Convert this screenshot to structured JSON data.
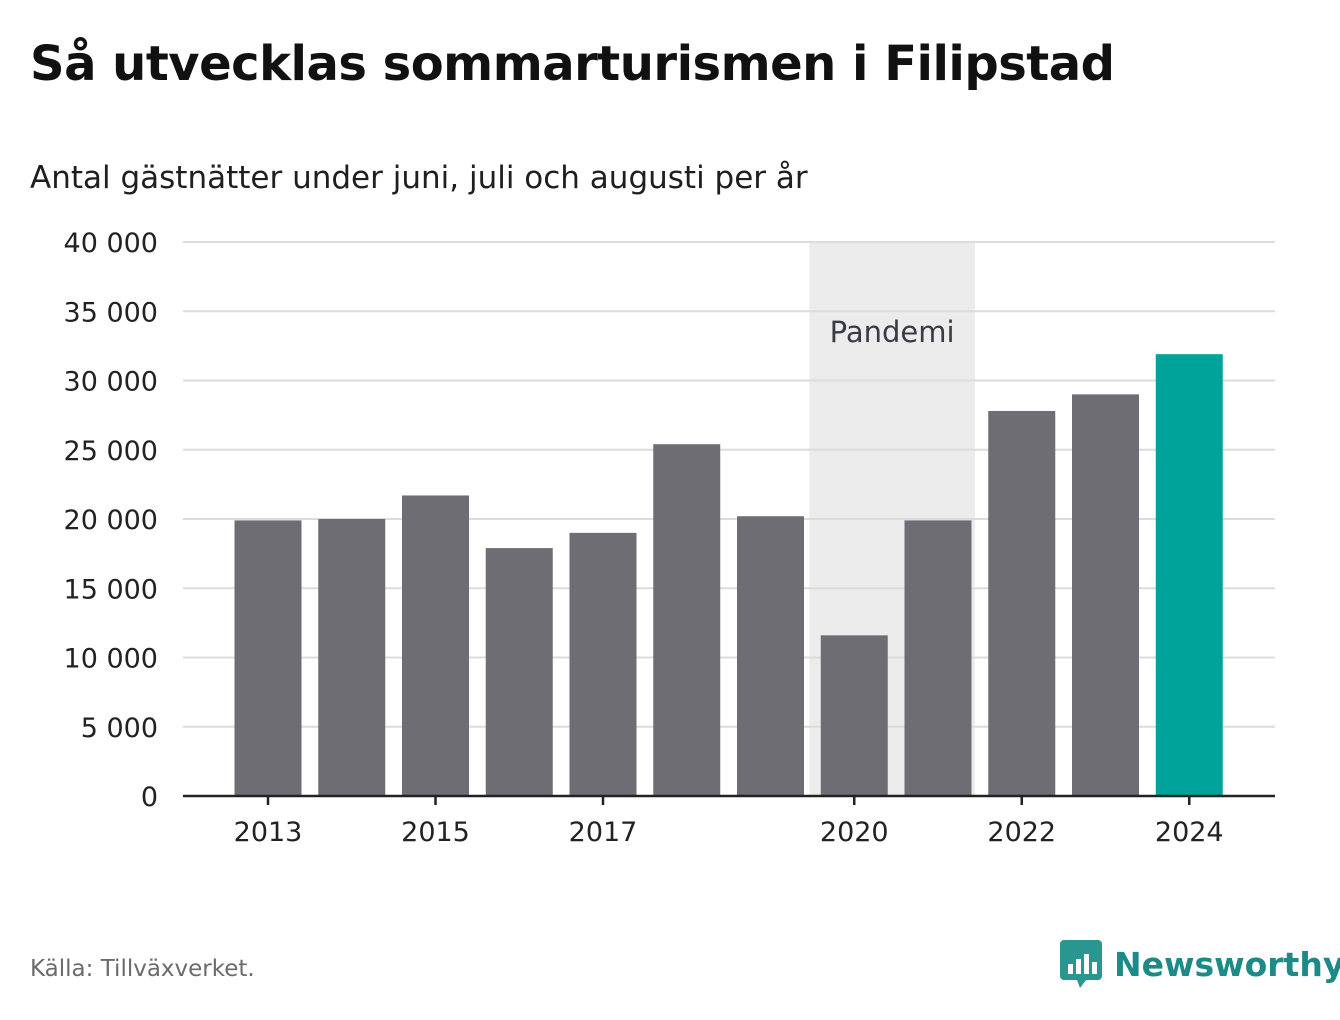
{
  "title": "Så utvecklas sommarturismen i Filipstad",
  "subtitle": "Antal gästnätter under juni, juli och augusti per år",
  "source": "Källa: Tillväxverket.",
  "brand": {
    "name": "Newsworthy",
    "icon": "newsworthy-chat-bar-icon"
  },
  "colors": {
    "bar": "#6e6d73",
    "highlight": "#00a39a",
    "band": "#ececec",
    "grid": "#dcdcdc",
    "axis": "#222222",
    "brand": "#1c8a87"
  },
  "chart_data": {
    "type": "bar",
    "categories": [
      2013,
      2014,
      2015,
      2016,
      2017,
      2018,
      2019,
      2020,
      2021,
      2022,
      2023,
      2024
    ],
    "values": [
      19900,
      20000,
      21700,
      17900,
      19000,
      25400,
      20200,
      11600,
      19900,
      27800,
      29000,
      31900
    ],
    "xtick_labels": [
      "2013",
      "2015",
      "2017",
      "2020",
      "2022",
      "2024"
    ],
    "ylim": [
      0,
      40000
    ],
    "yticks": [
      0,
      5000,
      10000,
      15000,
      20000,
      25000,
      30000,
      35000,
      40000
    ],
    "ytick_labels": [
      "0",
      "5 000",
      "10 000",
      "15 000",
      "20 000",
      "25 000",
      "30 000",
      "35 000",
      "40 000"
    ],
    "highlight_category": 2024,
    "annotation": {
      "label": "Pandemi",
      "from": 2020,
      "to": 2021
    },
    "grid": true
  }
}
